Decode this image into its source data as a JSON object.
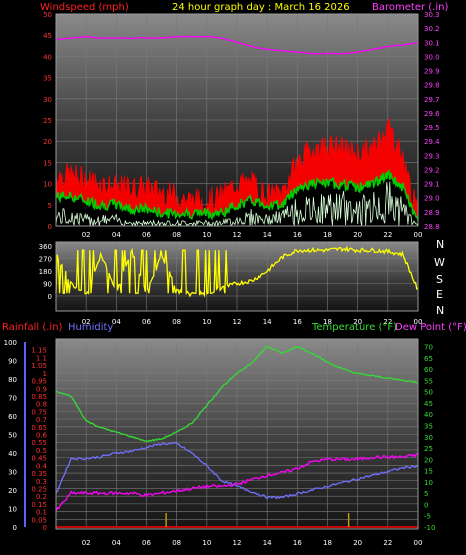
{
  "header": {
    "left_title": "Windspeed (mph)",
    "center_title": "24 hour graph day : March 16 2026",
    "right_title": "Barometer (.in)"
  },
  "compass": {
    "labels": [
      "N",
      "W",
      "S",
      "E",
      "N"
    ]
  },
  "lower_header": {
    "rainfall": "Rainfall (.in)",
    "humidity": "Humidity",
    "temperature": "Temperature (°F)",
    "dewpoint": "Dew Point (°F)"
  },
  "colors": {
    "wind_gust": "#ff0000",
    "wind_avg": "#00cc00",
    "wind_min": "#d8ffd8",
    "barometer": "#ff00ff",
    "direction": "#ffff00",
    "temperature": "#33dd33",
    "dewpoint": "#ff00ff",
    "humidity": "#7070ff",
    "rainfall": "#ff0000",
    "rain_marker": "#c8a000"
  },
  "chart_data": [
    {
      "type": "line",
      "name": "wind-barometer",
      "x_ticks": [
        "02",
        "04",
        "06",
        "08",
        "10",
        "12",
        "14",
        "16",
        "18",
        "20",
        "22",
        "00"
      ],
      "x": [
        0,
        1,
        2,
        3,
        4,
        5,
        6,
        7,
        8,
        9,
        10,
        11,
        12,
        13,
        14,
        15,
        16,
        17,
        18,
        19,
        20,
        21,
        22,
        23,
        24
      ],
      "y_left_ticks": [
        0,
        5,
        10,
        15,
        20,
        25,
        30,
        35,
        40,
        45,
        50
      ],
      "y_left_range": [
        0,
        50
      ],
      "y_right_ticks": [
        28.8,
        28.9,
        29.0,
        29.1,
        29.2,
        29.3,
        29.4,
        29.5,
        29.6,
        29.7,
        29.8,
        29.9,
        30.0,
        30.1,
        30.2,
        30.3
      ],
      "y_right_range": [
        28.8,
        30.3
      ],
      "series": [
        {
          "axis": "left",
          "role": "gust",
          "values": [
            12,
            12,
            11,
            10,
            9,
            9,
            9,
            8,
            7,
            6,
            6,
            7,
            10,
            10,
            7,
            8,
            15,
            18,
            19,
            18,
            17,
            18,
            24,
            16,
            2
          ]
        },
        {
          "axis": "left",
          "role": "avg",
          "values": [
            7,
            7,
            6,
            5,
            5,
            4,
            4,
            3,
            3,
            3,
            3,
            3,
            5,
            6,
            5,
            5,
            9,
            10,
            10,
            10,
            9,
            10,
            12,
            9,
            1
          ]
        },
        {
          "axis": "left",
          "role": "min",
          "values": [
            3,
            3,
            2,
            2,
            2,
            1,
            1,
            1,
            1,
            1,
            1,
            1,
            2,
            3,
            2,
            3,
            5,
            5,
            6,
            6,
            5,
            6,
            8,
            5,
            0
          ]
        },
        {
          "axis": "right",
          "role": "barometer",
          "values": [
            30.12,
            30.13,
            30.14,
            30.13,
            30.13,
            30.13,
            30.13,
            30.13,
            30.14,
            30.14,
            30.14,
            30.13,
            30.1,
            30.07,
            30.05,
            30.04,
            30.03,
            30.02,
            30.02,
            30.02,
            30.03,
            30.05,
            30.07,
            30.08,
            30.1
          ]
        }
      ]
    },
    {
      "type": "line",
      "name": "wind-direction",
      "x_ticks": [
        "02",
        "04",
        "06",
        "08",
        "10",
        "12",
        "14",
        "16",
        "18",
        "20",
        "22",
        "00"
      ],
      "y_ticks": [
        0,
        90,
        180,
        270,
        360
      ],
      "y_range": [
        0,
        360
      ],
      "series": [
        {
          "role": "direction",
          "values": [
            300,
            90,
            20,
            300,
            20,
            330,
            20,
            300,
            40,
            10,
            20,
            60,
            90,
            110,
            180,
            280,
            330,
            330,
            330,
            340,
            330,
            330,
            320,
            300,
            40
          ]
        }
      ]
    },
    {
      "type": "line",
      "name": "temperature-humidity-rain",
      "x_ticks": [
        "02",
        "04",
        "06",
        "08",
        "10",
        "12",
        "14",
        "16",
        "18",
        "20",
        "22",
        "00"
      ],
      "x": [
        0,
        1,
        2,
        3,
        4,
        5,
        6,
        7,
        8,
        9,
        10,
        11,
        12,
        13,
        14,
        15,
        16,
        17,
        18,
        19,
        20,
        21,
        22,
        23,
        24
      ],
      "y_humidity_ticks": [
        0,
        10,
        20,
        30,
        40,
        50,
        60,
        70,
        80,
        90,
        100
      ],
      "y_humidity_range": [
        0,
        100
      ],
      "y_rain_ticks": [
        0,
        0.05,
        0.1,
        0.15,
        0.2,
        0.25,
        0.3,
        0.35,
        0.4,
        0.45,
        0.5,
        0.55,
        0.6,
        0.65,
        0.7,
        0.75,
        0.8,
        0.85,
        0.9,
        0.95,
        1,
        1.05,
        1.1,
        1.15
      ],
      "y_rain_range": [
        0,
        1.2
      ],
      "y_temp_ticks": [
        -10,
        -5,
        0,
        5,
        10,
        15,
        20,
        25,
        30,
        35,
        40,
        45,
        50,
        55,
        60,
        65,
        70
      ],
      "y_temp_range": [
        -10,
        72
      ],
      "series": [
        {
          "axis": "temp",
          "role": "temperature",
          "values": [
            50,
            48,
            37,
            34,
            32,
            30,
            28,
            29,
            32,
            36,
            44,
            52,
            58,
            63,
            70,
            67,
            70,
            67,
            63,
            60,
            58,
            57,
            56,
            55,
            54
          ]
        },
        {
          "axis": "temp",
          "role": "dewpoint",
          "values": [
            -3,
            5,
            5,
            5,
            5,
            5,
            4,
            5,
            6,
            7,
            8,
            8,
            9,
            11,
            13,
            14,
            16,
            19,
            20,
            20,
            20,
            21,
            21,
            21,
            22
          ]
        },
        {
          "axis": "humidity",
          "role": "humidity",
          "values": [
            18,
            37,
            37,
            38,
            40,
            41,
            43,
            45,
            45,
            40,
            33,
            25,
            22,
            19,
            16,
            16,
            18,
            20,
            22,
            24,
            26,
            28,
            30,
            32,
            33
          ]
        },
        {
          "axis": "rain",
          "role": "rainfall",
          "values": [
            0,
            0,
            0,
            0,
            0,
            0,
            0,
            0,
            0,
            0,
            0,
            0,
            0,
            0,
            0,
            0,
            0,
            0,
            0,
            0,
            0,
            0,
            0,
            0,
            0
          ]
        }
      ],
      "markers_x": [
        7.3,
        19.4
      ]
    }
  ]
}
